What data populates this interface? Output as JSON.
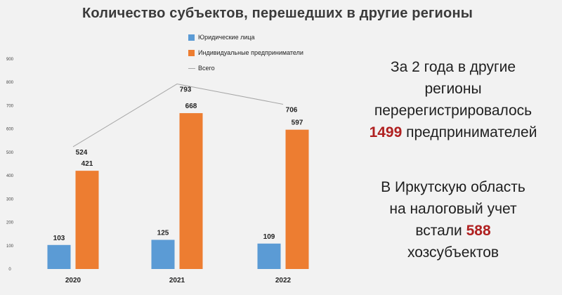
{
  "title": "Количество субъектов, перешедших в другие регионы",
  "colors": {
    "series1": "#5b9bd5",
    "series2": "#ed7d31",
    "total": "#a6a6a6",
    "highlight": "#b02020"
  },
  "chart_data": {
    "type": "bar",
    "categories": [
      "2020",
      "2021",
      "2022"
    ],
    "series": [
      {
        "name": "Юридические лица",
        "values": [
          103,
          125,
          109
        ]
      },
      {
        "name": "Индивидуальные предприниматели",
        "values": [
          421,
          668,
          597
        ]
      }
    ],
    "line_series": {
      "name": "Всего",
      "values": [
        524,
        793,
        706
      ]
    },
    "ylim": [
      0,
      900
    ],
    "yticks": [
      0,
      100,
      200,
      300,
      400,
      500,
      600,
      700,
      800,
      900
    ],
    "grid": false,
    "legend": "top"
  },
  "side": {
    "block1": {
      "line1": "За 2 года в другие",
      "line2": "регионы",
      "line3": "перерегистрировалось",
      "num": "1499",
      "after": " предпринимателей"
    },
    "block2": {
      "line1": "В Иркутскую область",
      "line2": "на налоговый учет",
      "before": "встали ",
      "num": "588",
      "line4": "хозсубъектов"
    }
  }
}
